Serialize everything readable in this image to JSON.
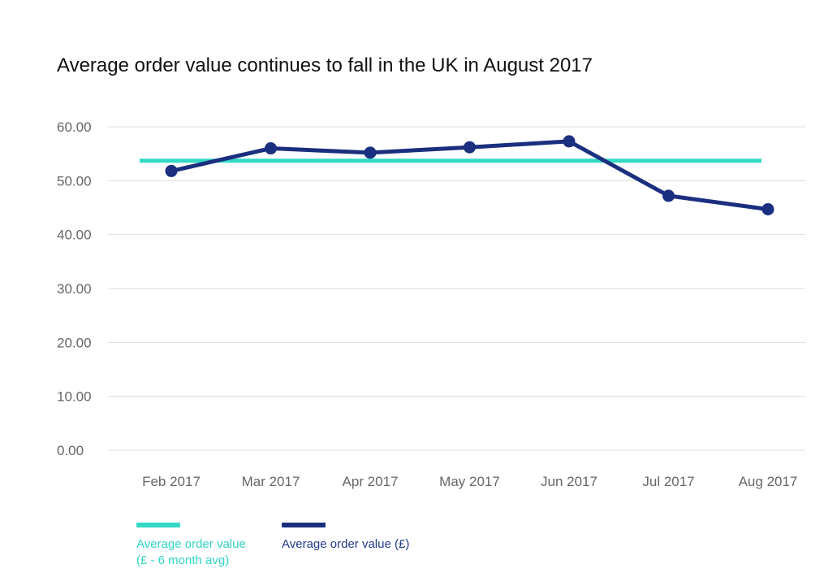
{
  "chart_data": {
    "type": "line",
    "title": "Average order value continues to fall in the UK in August 2017",
    "categories": [
      "Feb 2017",
      "Mar 2017",
      "Apr 2017",
      "May 2017",
      "Jun 2017",
      "Jul 2017",
      "Aug 2017"
    ],
    "y_ticks": [
      "0.00",
      "10.00",
      "20.00",
      "30.00",
      "40.00",
      "50.00",
      "60.00"
    ],
    "ylim": [
      0,
      60
    ],
    "grid": true,
    "legend_position": "bottom-left",
    "series": [
      {
        "name": "Average order value (£)",
        "values": [
          51.8,
          56.0,
          55.2,
          56.2,
          57.3,
          47.2,
          44.7
        ],
        "color": "#1a2f7f"
      }
    ],
    "reference_line": {
      "name_line1": "Average order value",
      "name_line2": "(£ - 6 month avg)",
      "value": 53.7,
      "color": "#34d9c5"
    }
  }
}
